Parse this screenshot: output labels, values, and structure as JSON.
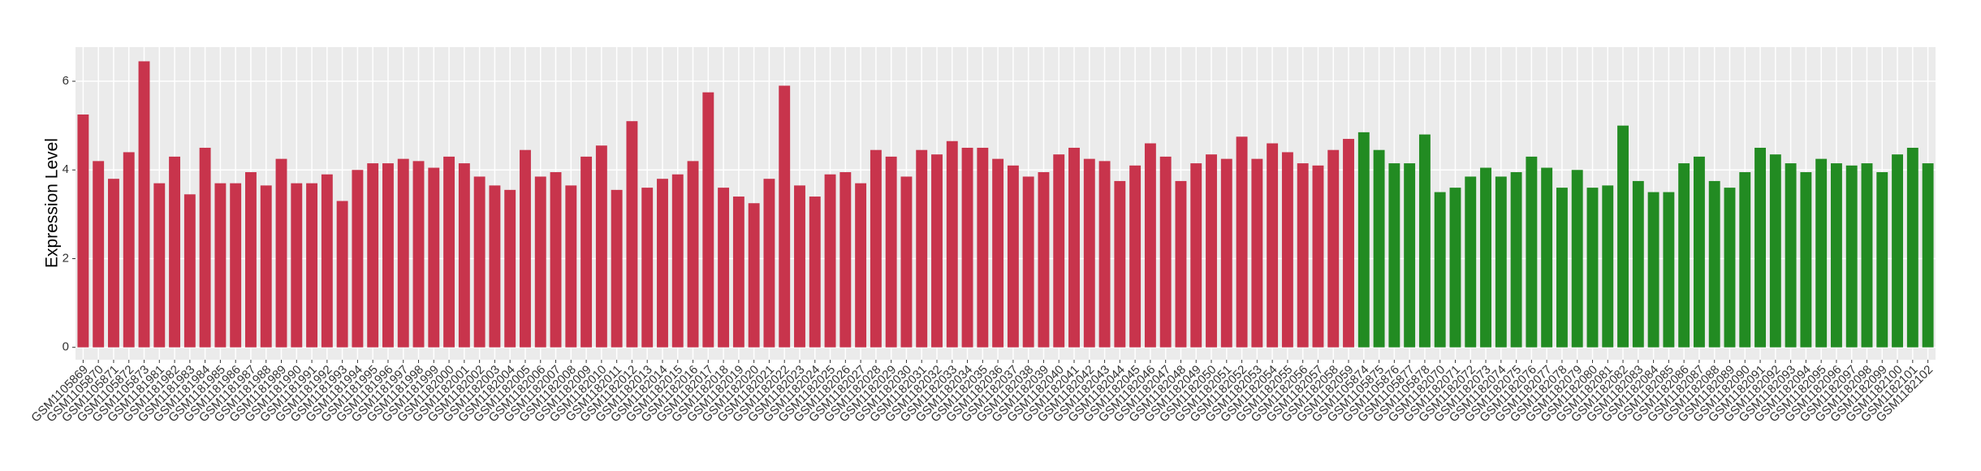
{
  "chart_data": {
    "type": "bar",
    "y_label": "Expression Level",
    "categories": [
      "GSM1105869",
      "GSM1105870",
      "GSM1105871",
      "GSM1105872",
      "GSM1105873",
      "GSM1181981",
      "GSM1181982",
      "GSM1181983",
      "GSM1181984",
      "GSM1181985",
      "GSM1181986",
      "GSM1181987",
      "GSM1181988",
      "GSM1181989",
      "GSM1181990",
      "GSM1181991",
      "GSM1181992",
      "GSM1181993",
      "GSM1181994",
      "GSM1181995",
      "GSM1181996",
      "GSM1181997",
      "GSM1181998",
      "GSM1181999",
      "GSM1182000",
      "GSM1182001",
      "GSM1182002",
      "GSM1182003",
      "GSM1182004",
      "GSM1182005",
      "GSM1182006",
      "GSM1182007",
      "GSM1182008",
      "GSM1182009",
      "GSM1182010",
      "GSM1182011",
      "GSM1182012",
      "GSM1182013",
      "GSM1182014",
      "GSM1182015",
      "GSM1182016",
      "GSM1182017",
      "GSM1182018",
      "GSM1182019",
      "GSM1182020",
      "GSM1182021",
      "GSM1182022",
      "GSM1182023",
      "GSM1182024",
      "GSM1182025",
      "GSM1182026",
      "GSM1182027",
      "GSM1182028",
      "GSM1182029",
      "GSM1182030",
      "GSM1182031",
      "GSM1182032",
      "GSM1182033",
      "GSM1182034",
      "GSM1182035",
      "GSM1182036",
      "GSM1182037",
      "GSM1182038",
      "GSM1182039",
      "GSM1182040",
      "GSM1182041",
      "GSM1182042",
      "GSM1182043",
      "GSM1182044",
      "GSM1182045",
      "GSM1182046",
      "GSM1182047",
      "GSM1182048",
      "GSM1182049",
      "GSM1182050",
      "GSM1182051",
      "GSM1182052",
      "GSM1182053",
      "GSM1182054",
      "GSM1182055",
      "GSM1182056",
      "GSM1182057",
      "GSM1182058",
      "GSM1182059",
      "GSM1105874",
      "GSM1105875",
      "GSM1105876",
      "GSM1105877",
      "GSM1105878",
      "GSM1182070",
      "GSM1182071",
      "GSM1182072",
      "GSM1182073",
      "GSM1182074",
      "GSM1182075",
      "GSM1182076",
      "GSM1182077",
      "GSM1182078",
      "GSM1182079",
      "GSM1182080",
      "GSM1182081",
      "GSM1182082",
      "GSM1182083",
      "GSM1182084",
      "GSM1182085",
      "GSM1182086",
      "GSM1182087",
      "GSM1182088",
      "GSM1182089",
      "GSM1182090",
      "GSM1182091",
      "GSM1182092",
      "GSM1182093",
      "GSM1182094",
      "GSM1182095",
      "GSM1182096",
      "GSM1182097",
      "GSM1182098",
      "GSM1182099",
      "GSM1182100",
      "GSM1182101",
      "GSM1182102"
    ],
    "series": [
      {
        "color": "#c8344c",
        "values": [
          5.25,
          4.2,
          3.8,
          4.4,
          6.45,
          3.7,
          4.3,
          3.45,
          4.5,
          3.7,
          3.7,
          3.95,
          3.65,
          4.25,
          3.7,
          3.7,
          3.9,
          3.3,
          4.0,
          4.15,
          4.15,
          4.25,
          4.2,
          4.05,
          4.3,
          4.15,
          3.85,
          3.65,
          3.55,
          4.45,
          3.85,
          3.95,
          3.65,
          4.3,
          4.55,
          3.55,
          5.1,
          3.6,
          3.8,
          3.9,
          4.2,
          5.75,
          3.6,
          3.4,
          3.25,
          3.8,
          5.9,
          3.65,
          3.4,
          3.9,
          3.95,
          3.7,
          4.45,
          4.3,
          3.85,
          4.45,
          4.35,
          4.65,
          4.5,
          4.5,
          4.25,
          4.1,
          3.85,
          3.95,
          4.35,
          4.5,
          4.25,
          4.2,
          3.75,
          4.1,
          4.6,
          4.3,
          3.75,
          4.15,
          4.35,
          4.25,
          4.75,
          4.25,
          4.6,
          4.4,
          4.15,
          4.1,
          4.45,
          4.7,
          null,
          null,
          null,
          null,
          null,
          null,
          null,
          null,
          null,
          null,
          null,
          null,
          null,
          null,
          null,
          null,
          null,
          null,
          null,
          null,
          null,
          null,
          null,
          null,
          null,
          null,
          null,
          null,
          null,
          null,
          null,
          null,
          null,
          null,
          null,
          null,
          null,
          null
        ]
      },
      {
        "color": "#228b22",
        "values": [
          null,
          null,
          null,
          null,
          null,
          null,
          null,
          null,
          null,
          null,
          null,
          null,
          null,
          null,
          null,
          null,
          null,
          null,
          null,
          null,
          null,
          null,
          null,
          null,
          null,
          null,
          null,
          null,
          null,
          null,
          null,
          null,
          null,
          null,
          null,
          null,
          null,
          null,
          null,
          null,
          null,
          null,
          null,
          null,
          null,
          null,
          null,
          null,
          null,
          null,
          null,
          null,
          null,
          null,
          null,
          null,
          null,
          null,
          null,
          null,
          null,
          null,
          null,
          null,
          null,
          null,
          null,
          null,
          null,
          null,
          null,
          null,
          null,
          null,
          null,
          null,
          null,
          null,
          null,
          null,
          null,
          null,
          null,
          null,
          4.85,
          4.45,
          4.15,
          4.15,
          4.8,
          3.5,
          3.6,
          3.85,
          4.05,
          3.85,
          3.95,
          4.3,
          4.05,
          3.6,
          4.0,
          3.6,
          3.65,
          5.0,
          3.75,
          3.5,
          3.5,
          4.15,
          4.3,
          3.75,
          3.6,
          3.95,
          4.5,
          4.35,
          4.15,
          3.95,
          4.25,
          4.15,
          4.1,
          4.15,
          3.95,
          4.35,
          4.5,
          4.15
        ]
      }
    ],
    "ylim": [
      -0.28,
      6.77
    ],
    "yticks": [
      0,
      2,
      4,
      6
    ],
    "grid": true
  }
}
